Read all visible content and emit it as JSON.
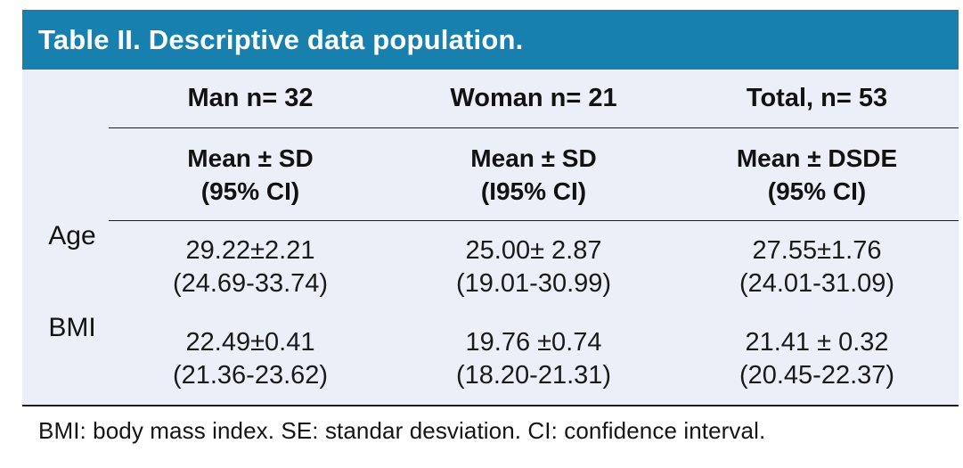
{
  "title": "Table II. Descriptive data population.",
  "colors": {
    "header_bg": "#1780AF",
    "body_bg": "#ECEFF8",
    "title_text": "#FFFFFF",
    "rule": "#1C1C1C"
  },
  "columns": [
    {
      "group": "Man n= 32",
      "sub_line1": "Mean ± SD",
      "sub_line2": "(95% CI)"
    },
    {
      "group": "Woman n= 21",
      "sub_line1": "Mean ± SD",
      "sub_line2": "(I95% CI)"
    },
    {
      "group": "Total, n= 53",
      "sub_line1": "Mean ± DSDE",
      "sub_line2": "(95% CI)"
    }
  ],
  "rows": [
    {
      "label": "Age",
      "cells": [
        {
          "line1": "29.22±2.21",
          "line2": "(24.69-33.74)"
        },
        {
          "line1": "25.00± 2.87",
          "line2": "(19.01-30.99)"
        },
        {
          "line1": "27.55±1.76",
          "line2": "(24.01-31.09)"
        }
      ]
    },
    {
      "label": "BMI",
      "cells": [
        {
          "line1": "22.49±0.41",
          "line2": "(21.36-23.62)"
        },
        {
          "line1": "19.76 ±0.74",
          "line2": "(18.20-21.31)"
        },
        {
          "line1": "21.41 ± 0.32",
          "line2": "(20.45-22.37)"
        }
      ]
    }
  ],
  "footnote": "BMI: body mass index. SE: standar desviation. CI: confidence interval."
}
